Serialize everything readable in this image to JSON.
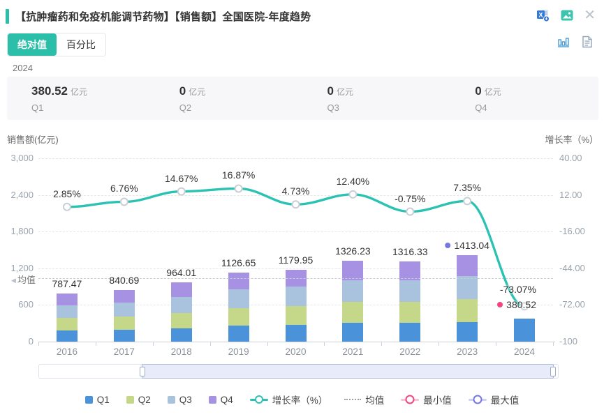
{
  "header": {
    "title": "【抗肿瘤药和免疫机能调节药物】【销售额】全国医院-年度趋势",
    "icons": [
      {
        "name": "excel-export-icon"
      },
      {
        "name": "image-export-icon"
      },
      {
        "name": "close-icon"
      }
    ]
  },
  "toolbar": {
    "tabs": [
      {
        "label": "绝对值",
        "active": true
      },
      {
        "label": "百分比",
        "active": false
      }
    ],
    "view_icons": [
      {
        "name": "chart-view-icon"
      },
      {
        "name": "table-view-icon"
      }
    ]
  },
  "period_label": "2024",
  "stat_cards": [
    {
      "value": "380.52",
      "unit": "亿元",
      "label": "Q1"
    },
    {
      "value": "0",
      "unit": "亿元",
      "label": "Q2"
    },
    {
      "value": "0",
      "unit": "亿元",
      "label": "Q3"
    },
    {
      "value": "0",
      "unit": "亿元",
      "label": "Q4"
    }
  ],
  "chart_data": {
    "type": "bar",
    "subtype": "stacked-bar-with-line",
    "categories": [
      "2016",
      "2017",
      "2018",
      "2019",
      "2020",
      "2021",
      "2022",
      "2023",
      "2024"
    ],
    "series": [
      {
        "name": "Q1",
        "color": "#4a93db",
        "values": [
          181.12,
          193.36,
          221.72,
          259.13,
          271.39,
          305.03,
          302.76,
          325.0,
          380.52
        ]
      },
      {
        "name": "Q2",
        "color": "#c5d88a",
        "values": [
          204.74,
          218.58,
          250.64,
          292.93,
          306.79,
          344.82,
          342.25,
          367.39,
          0
        ]
      },
      {
        "name": "Q3",
        "color": "#a9c2de",
        "values": [
          212.62,
          226.99,
          260.28,
          304.2,
          318.59,
          358.08,
          355.41,
          381.52,
          0
        ]
      },
      {
        "name": "Q4",
        "color": "#a791e2",
        "values": [
          188.99,
          201.76,
          231.37,
          270.39,
          283.18,
          318.3,
          315.91,
          339.13,
          0
        ]
      }
    ],
    "bar_totals": [
      "787.47",
      "840.69",
      "964.01",
      "1126.65",
      "1179.95",
      "1326.23",
      "1316.33",
      "1413.04",
      "380.52"
    ],
    "line_series": {
      "name": "增长率（%）",
      "color": "#2cc2b3",
      "values": [
        2.85,
        6.76,
        14.67,
        16.87,
        4.73,
        12.4,
        -0.75,
        7.35,
        -73.07
      ],
      "labels": [
        "2.85%",
        "6.76%",
        "14.67%",
        "16.87%",
        "4.73%",
        "12.40%",
        "-0.75%",
        "7.35%",
        "-73.07%"
      ]
    },
    "left_axis": {
      "label": "销售额(亿元)",
      "ticks": [
        "3,000",
        "2,400",
        "1,800",
        "1,200",
        "600",
        "0"
      ],
      "min": 0,
      "max": 3000
    },
    "right_axis": {
      "label": "增长率（%）",
      "ticks": [
        "40.00",
        "12.00",
        "-16.00",
        "-44.00",
        "-72.00",
        "-100"
      ],
      "min": -100,
      "max": 40
    },
    "mean_line": {
      "label": "均值",
      "value": 1037.21
    },
    "max_point": {
      "index": 7,
      "label": "1413.04",
      "color": "#7678e2"
    },
    "min_point": {
      "index": 8,
      "label": "380.52",
      "color": "#f4457f"
    },
    "growth_end_label": "-73.07%",
    "grid": true,
    "legend_position": "bottom"
  },
  "slider": {
    "window_start_pct": 20,
    "window_end_pct": 99
  },
  "legend": {
    "items": [
      {
        "label": "Q1",
        "type": "square",
        "color": "#4a93db"
      },
      {
        "label": "Q2",
        "type": "square",
        "color": "#c5d88a"
      },
      {
        "label": "Q3",
        "type": "square",
        "color": "#a9c2de"
      },
      {
        "label": "Q4",
        "type": "square",
        "color": "#a791e2"
      },
      {
        "label": "增长率（%）",
        "type": "line",
        "color": "#2cc2b3"
      },
      {
        "label": "均值",
        "type": "dashed",
        "color": "#9aa0a6"
      },
      {
        "label": "最小值",
        "type": "ring",
        "color": "#f4457f"
      },
      {
        "label": "最大值",
        "type": "ring",
        "color": "#7678e2"
      }
    ]
  }
}
